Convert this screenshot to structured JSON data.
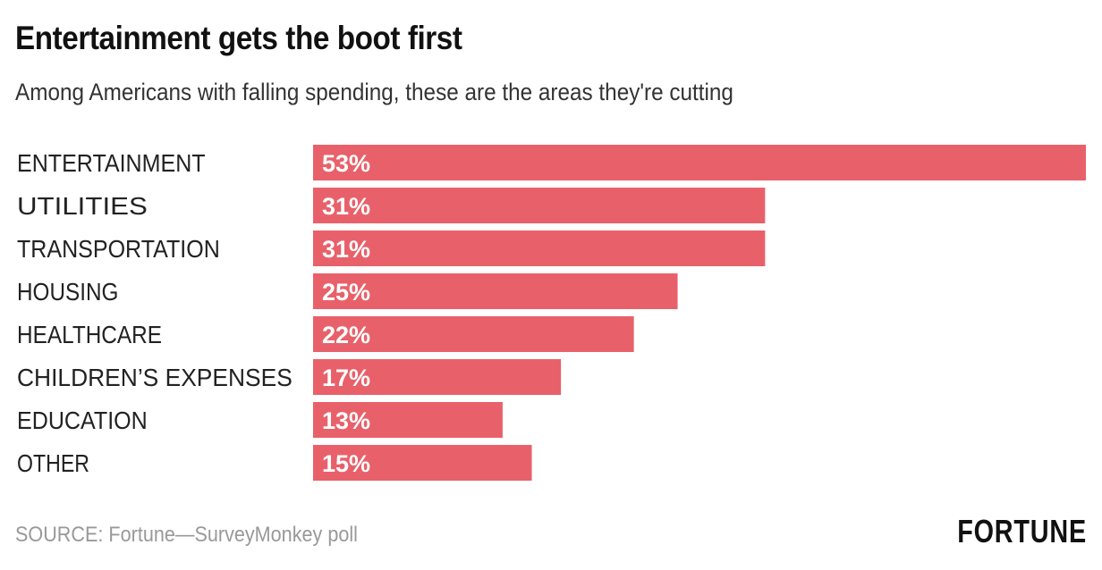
{
  "chart_data": {
    "type": "bar",
    "orientation": "horizontal",
    "title": "Entertainment gets the boot first",
    "subtitle": "Among Americans with falling spending, these are the areas they're cutting",
    "categories": [
      "ENTERTAINMENT",
      "UTILITIES",
      "TRANSPORTATION",
      "HOUSING",
      "HEALTHCARE",
      "CHILDREN’S EXPENSES",
      "EDUCATION",
      "OTHER"
    ],
    "values": [
      53,
      31,
      31,
      25,
      22,
      17,
      13,
      15
    ],
    "value_labels": [
      "53%",
      "31%",
      "31%",
      "25%",
      "22%",
      "17%",
      "13%",
      "15%"
    ],
    "xlim": [
      0,
      53
    ],
    "grid": false,
    "bar_color": "#e8616a"
  },
  "source": "SOURCE: Fortune—SurveyMonkey poll",
  "logo": "FORTUNE"
}
